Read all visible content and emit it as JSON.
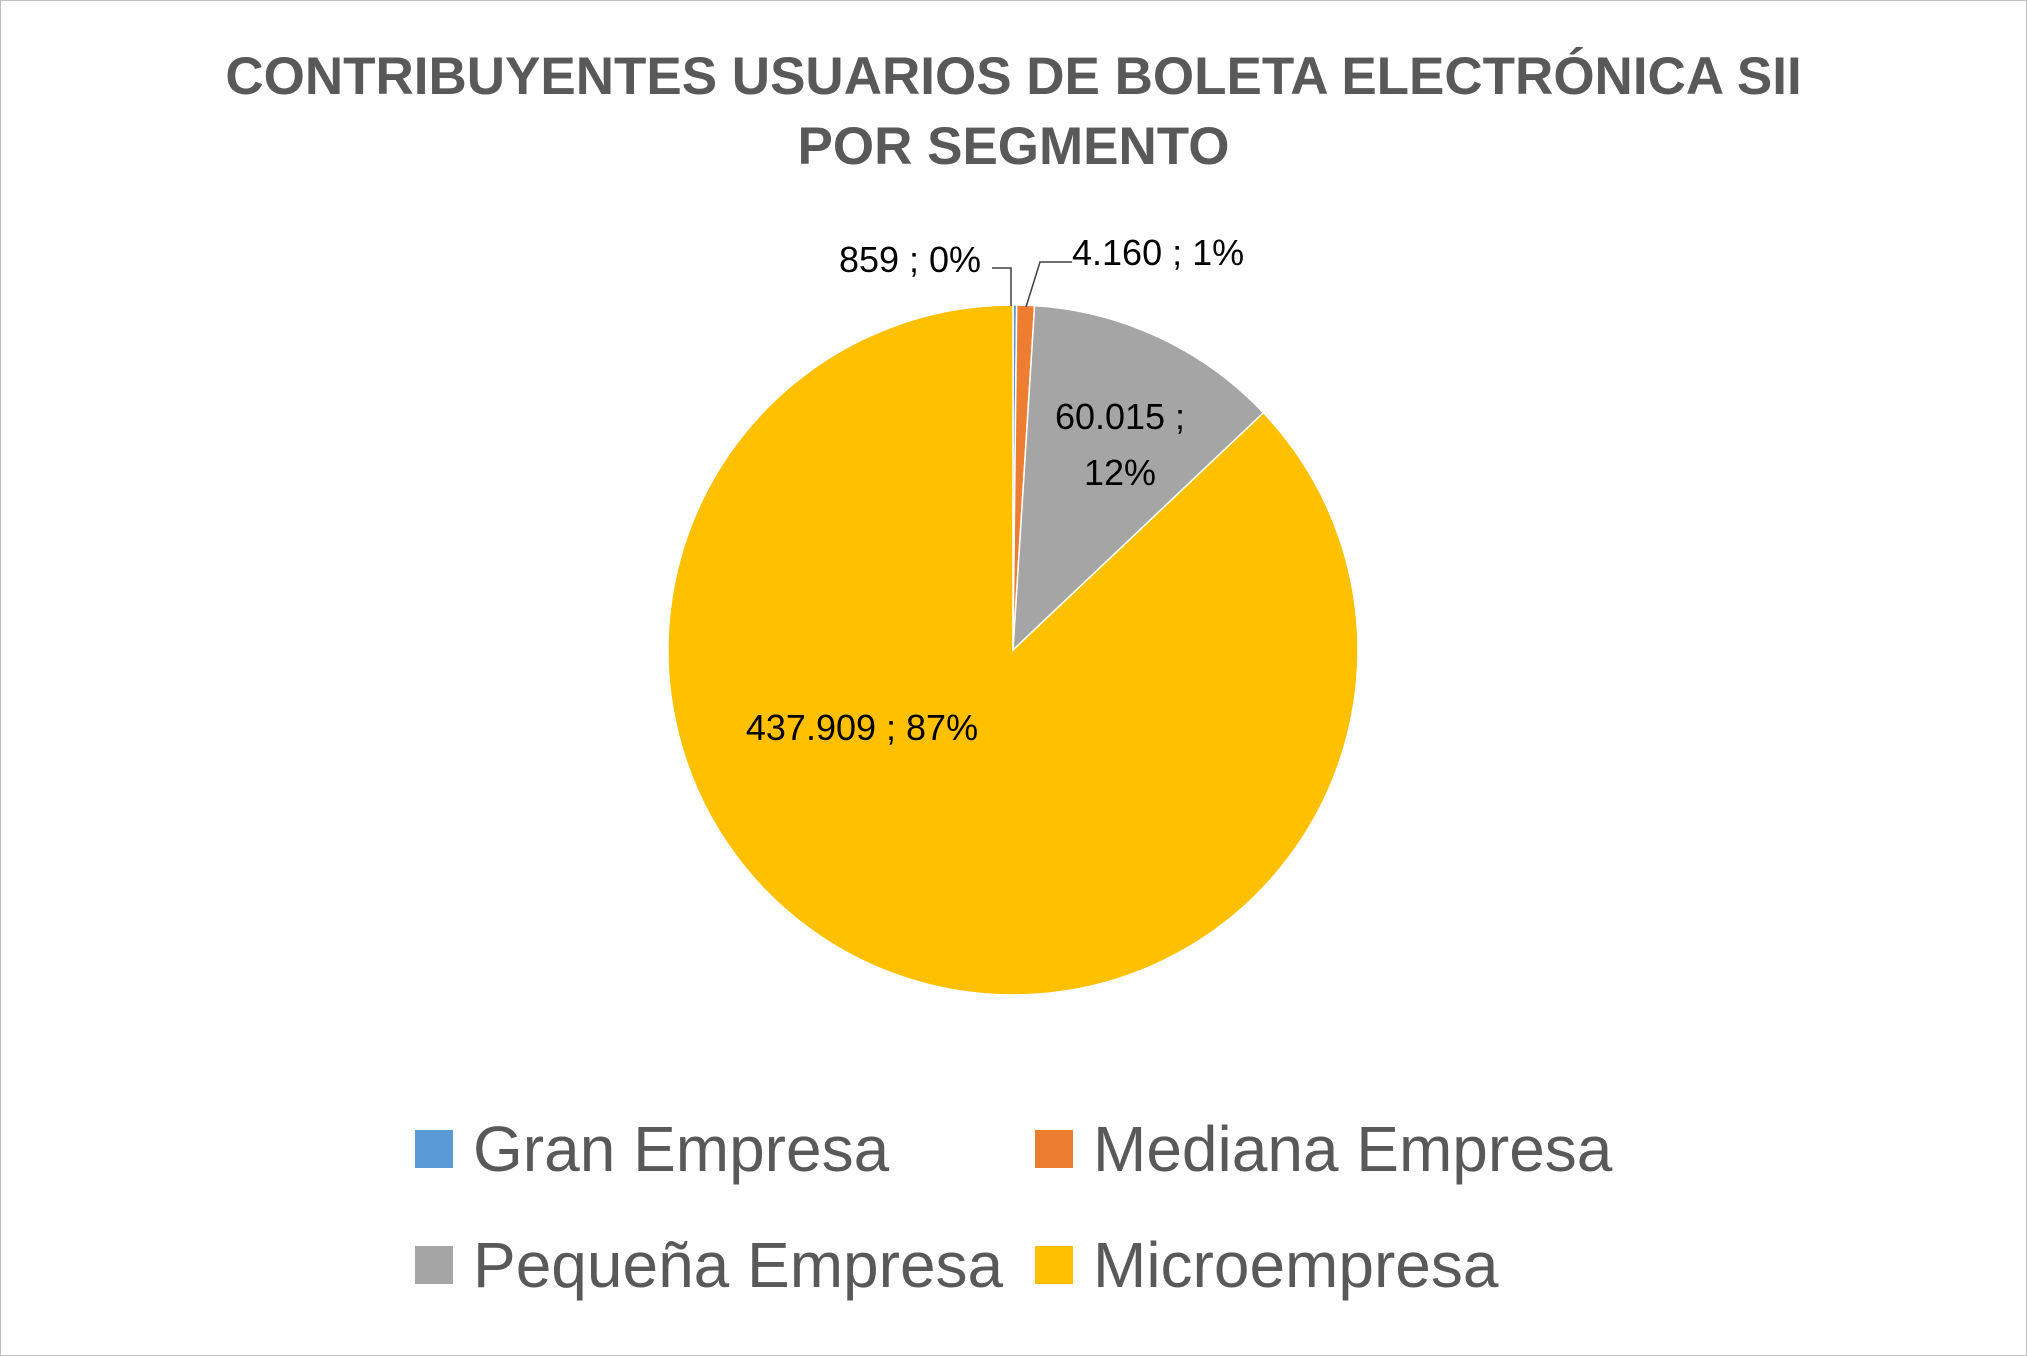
{
  "chart_data": {
    "type": "pie",
    "title": "CONTRIBUYENTES USUARIOS DE BOLETA ELECTRÓNICA SII POR SEGMENTO",
    "title_lines": [
      "CONTRIBUYENTES USUARIOS DE BOLETA ELECTRÓNICA SII",
      "POR SEGMENTO"
    ],
    "legend_position": "bottom",
    "slices": [
      {
        "label": "Gran Empresa",
        "value": 859,
        "percent": 0,
        "color": "#5b9bd5",
        "data_label": [
          "859 ; 0%"
        ]
      },
      {
        "label": "Mediana Empresa",
        "value": 4160,
        "percent": 1,
        "color": "#ed7d31",
        "data_label": [
          "4.160 ; 1%"
        ]
      },
      {
        "label": "Pequeña Empresa",
        "value": 60015,
        "percent": 12,
        "color": "#a5a5a5",
        "data_label": [
          "60.015 ;",
          "12%"
        ]
      },
      {
        "label": "Microempresa",
        "value": 437909,
        "percent": 87,
        "color": "#ffc000",
        "data_label": [
          "437.909 ; 87%"
        ]
      }
    ]
  }
}
